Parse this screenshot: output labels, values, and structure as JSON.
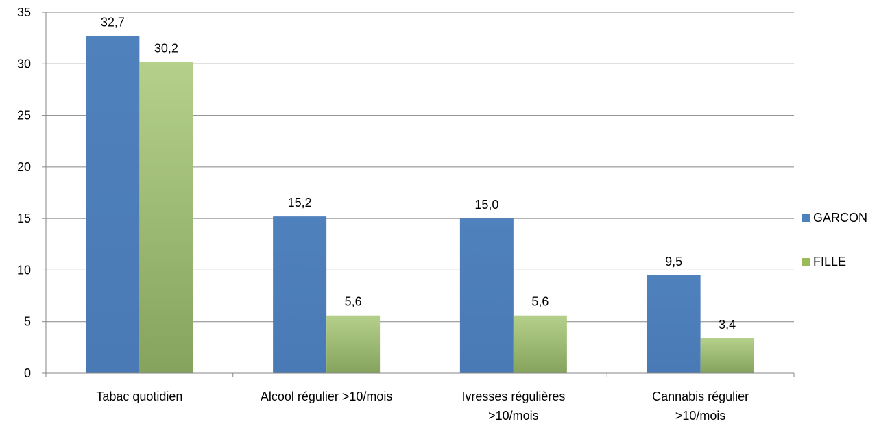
{
  "chart_data": {
    "type": "bar",
    "categories": [
      "Tabac quotidien",
      "Alcool régulier >10/mois",
      "Ivresses régulières >10/mois",
      "Cannabis régulier >10/mois"
    ],
    "category_lines": [
      [
        "Tabac quotidien"
      ],
      [
        "Alcool régulier >10/mois"
      ],
      [
        "Ivresses régulières",
        ">10/mois"
      ],
      [
        "Cannabis régulier",
        ">10/mois"
      ]
    ],
    "series": [
      {
        "name": "GARCON",
        "values": [
          32.7,
          15.2,
          15.0,
          9.5
        ],
        "labels": [
          "32,7",
          "15,2",
          "15,0",
          "9,5"
        ],
        "color": "#4F81BD"
      },
      {
        "name": "FILLE",
        "values": [
          30.2,
          5.6,
          5.6,
          3.4
        ],
        "labels": [
          "30,2",
          "5,6",
          "5,6",
          "3,4"
        ],
        "color": "#9BBB59"
      }
    ],
    "ylim": [
      0,
      35
    ],
    "yticks": [
      0,
      5,
      10,
      15,
      20,
      25,
      30,
      35
    ],
    "ytick_labels": [
      "0",
      "5",
      "10",
      "15",
      "20",
      "25",
      "30",
      "35"
    ],
    "grid": true,
    "legend_position": "right",
    "title": "",
    "xlabel": "",
    "ylabel": ""
  }
}
